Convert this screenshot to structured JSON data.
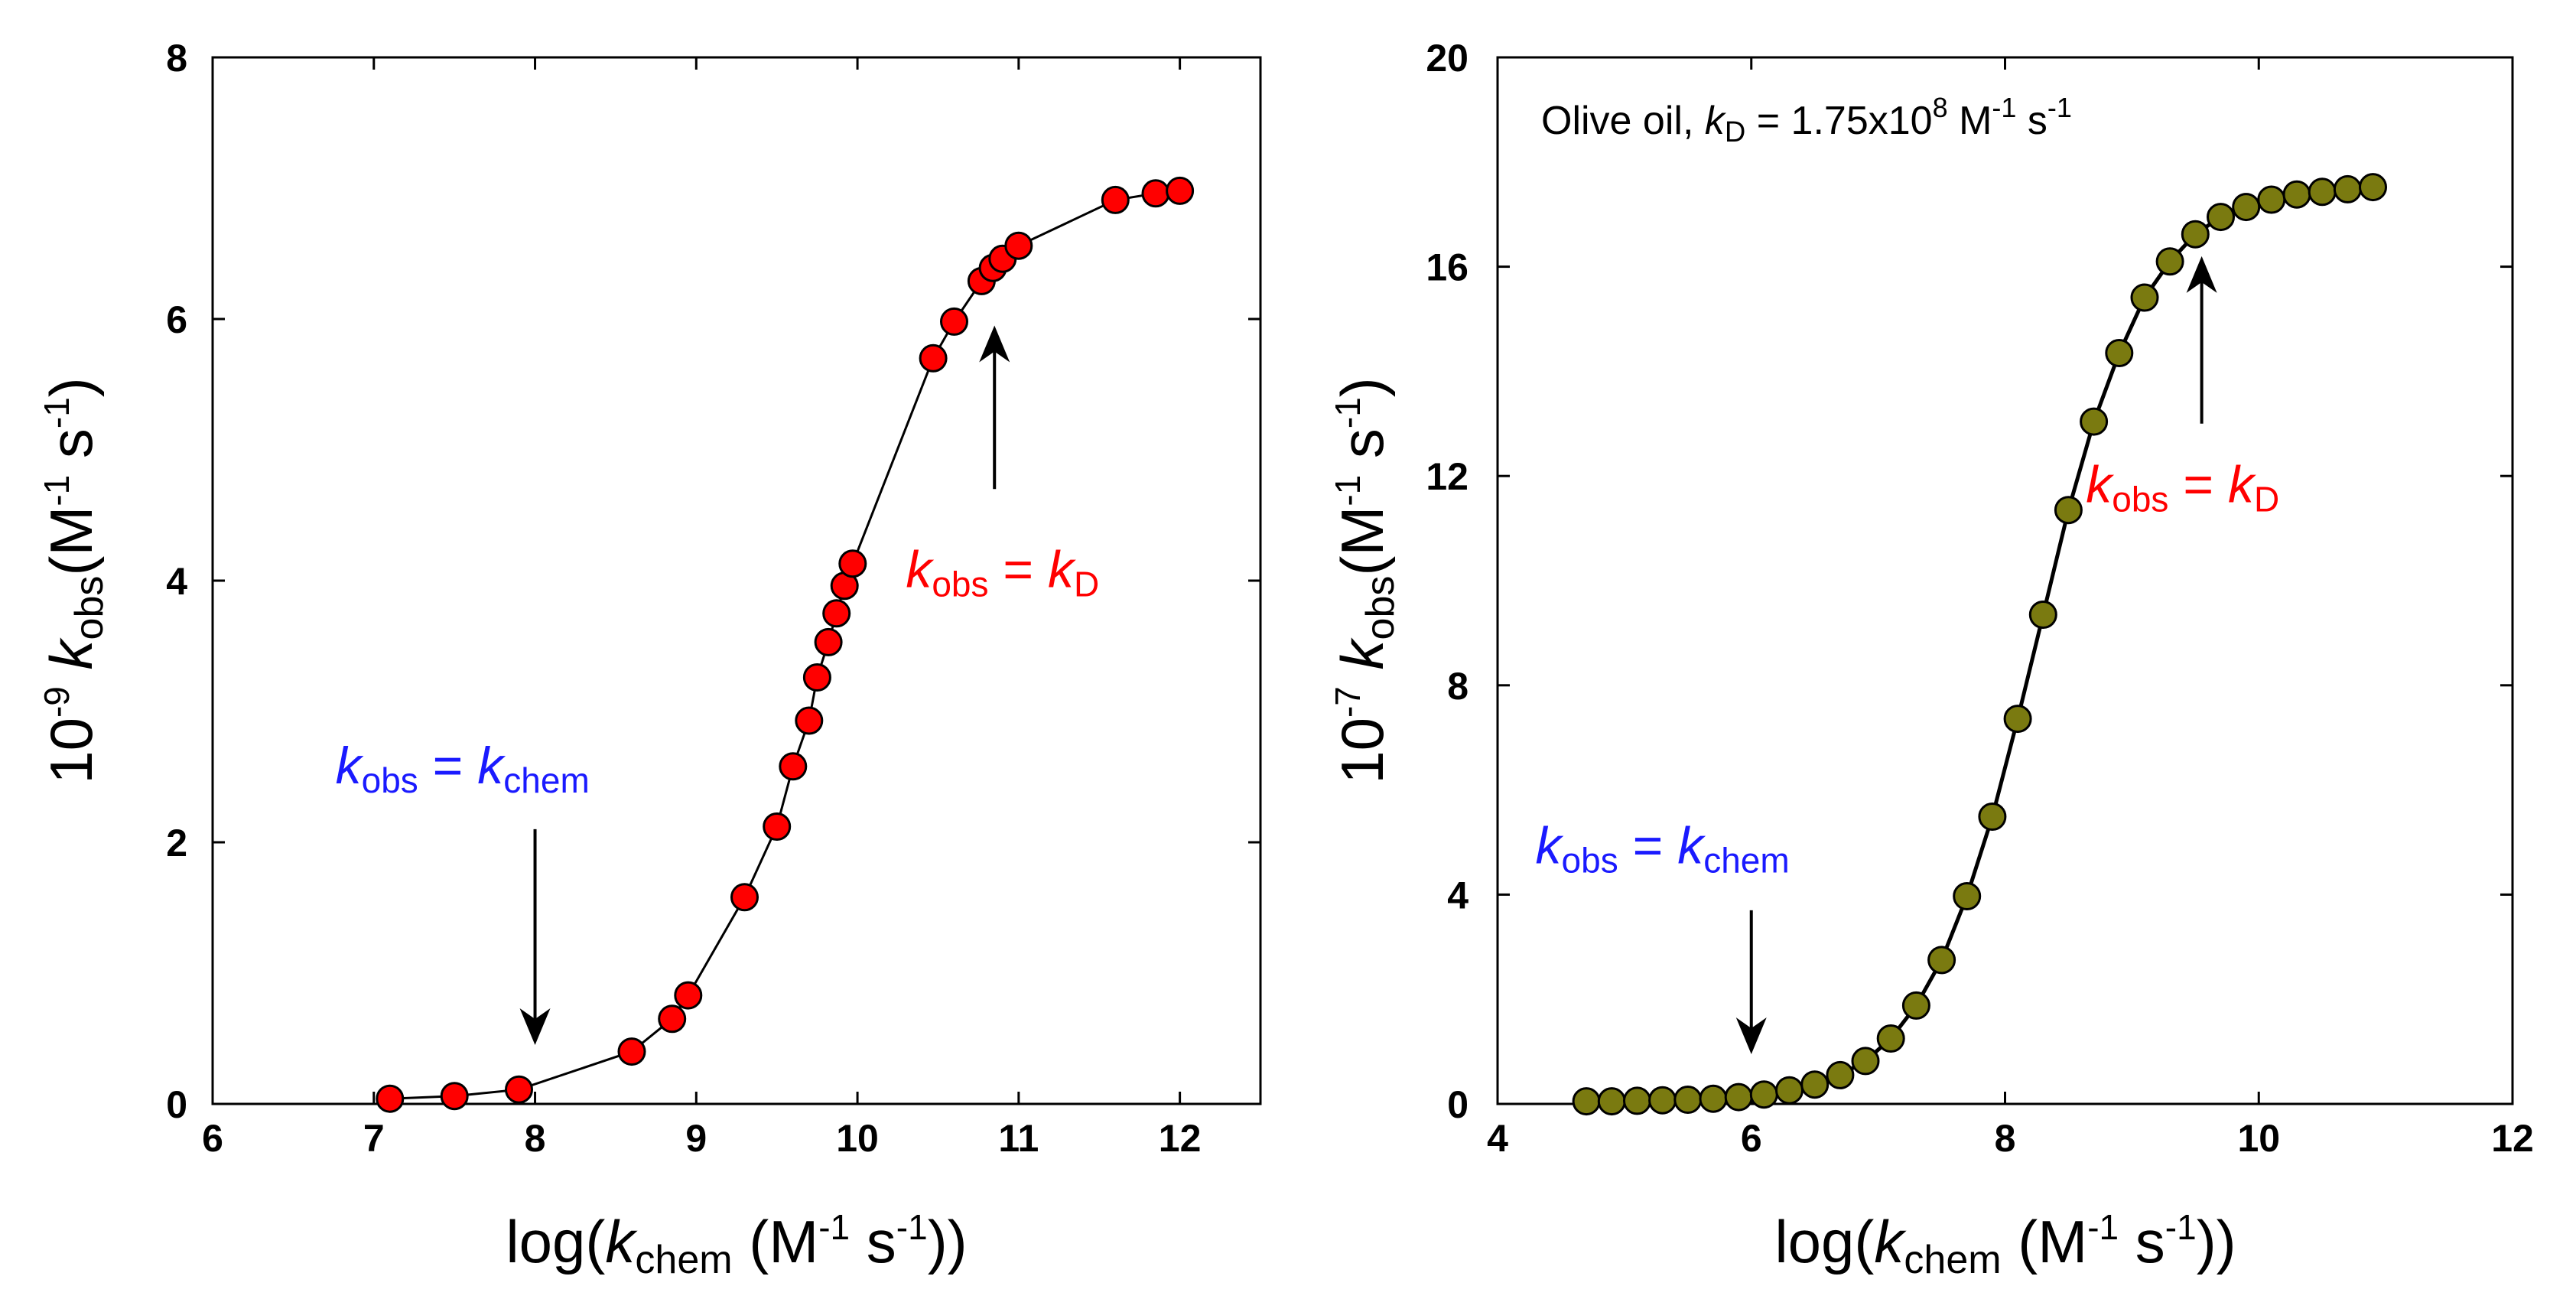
{
  "chart_data": [
    {
      "type": "scatter",
      "color": "#ff0000",
      "xlim": [
        6,
        12.5
      ],
      "ylim": [
        0,
        8
      ],
      "xticks": [
        "6",
        "7",
        "8",
        "9",
        "10",
        "11",
        "12"
      ],
      "yticks": [
        "0",
        "2",
        "4",
        "6",
        "8"
      ],
      "xlabel": {
        "prefix": "log(",
        "k": "k",
        "sub": "chem",
        "mid": " (M",
        "sup1": "-1",
        "mid2": " s",
        "sup2": "-1",
        "suffix": "))"
      },
      "ylabel": {
        "prefix": "10",
        "exp": "-9",
        "k": "k",
        "sub": "obs",
        "mid": "(M",
        "sup1": "-1",
        "mid2": " s",
        "sup2": "-1",
        "suffix": ")"
      },
      "annotations": [
        {
          "id": "low",
          "k1": "k",
          "s1": "obs",
          "eq": " = ",
          "k2": "k",
          "s2": "chem",
          "color": "#1a1aff",
          "arrow_x": 8.0,
          "arrow_from_y": 2.1,
          "arrow_to_y": 0.45,
          "text_x": 7.55,
          "text_y": 2.45
        },
        {
          "id": "high",
          "k1": "k",
          "s1": "obs",
          "eq": " = ",
          "k2": "k",
          "s2": "D",
          "color": "#ff0000",
          "arrow_x": 10.85,
          "arrow_from_y": 4.7,
          "arrow_to_y": 5.95,
          "text_x": 10.9,
          "text_y": 3.95
        }
      ],
      "series": [
        {
          "name": "data",
          "x": [
            7.1,
            7.5,
            7.9,
            8.6,
            8.85,
            8.95,
            9.3,
            9.5,
            9.6,
            9.7,
            9.75,
            9.82,
            9.87,
            9.92,
            9.97,
            10.47,
            10.6,
            10.77,
            10.84,
            10.9,
            11.0,
            11.6,
            11.85,
            12.0
          ],
          "y": [
            0.04,
            0.06,
            0.11,
            0.4,
            0.65,
            0.83,
            1.58,
            2.12,
            2.58,
            2.93,
            3.26,
            3.53,
            3.75,
            3.96,
            4.13,
            5.7,
            5.98,
            6.29,
            6.39,
            6.46,
            6.56,
            6.91,
            6.96,
            6.98
          ]
        }
      ]
    },
    {
      "type": "scatter",
      "color": "#7a7a10",
      "xlim": [
        4,
        12
      ],
      "ylim": [
        0,
        20
      ],
      "xticks": [
        "4",
        "6",
        "8",
        "10",
        "12"
      ],
      "yticks": [
        "0",
        "4",
        "8",
        "12",
        "16",
        "20"
      ],
      "xlabel": {
        "prefix": "log(",
        "k": "k",
        "sub": "chem",
        "mid": " (M",
        "sup1": "-1",
        "mid2": " s",
        "sup2": "-1",
        "suffix": "))"
      },
      "ylabel": {
        "prefix": "10",
        "exp": "-7",
        "k": "k",
        "sub": "obs",
        "mid": "(M",
        "sup1": "-1",
        "mid2": " s",
        "sup2": "-1",
        "suffix": ")"
      },
      "legend_note": {
        "text": "Olive oil, ",
        "k": "k",
        "sub": "D",
        "eq": " = 1.75x10",
        "exp": "8",
        "mid": " M",
        "sup1": "-1",
        "mid2": " s",
        "sup2": "-1"
      },
      "annotations": [
        {
          "id": "low",
          "k1": "k",
          "s1": "obs",
          "eq": " = ",
          "k2": "k",
          "s2": "chem",
          "color": "#1a1aff",
          "arrow_x": 6.0,
          "arrow_from_y": 3.7,
          "arrow_to_y": 0.95,
          "text_x": 5.3,
          "text_y": 4.6
        },
        {
          "id": "high",
          "k1": "k",
          "s1": "obs",
          "eq": " = ",
          "k2": "k",
          "s2": "D",
          "color": "#ff0000",
          "arrow_x": 9.55,
          "arrow_from_y": 13.0,
          "arrow_to_y": 16.2,
          "text_x": 9.4,
          "text_y": 11.5
        }
      ],
      "series": [
        {
          "name": "data",
          "x": [
            4.7,
            4.9,
            5.1,
            5.3,
            5.5,
            5.7,
            5.9,
            6.1,
            6.3,
            6.5,
            6.7,
            6.9,
            7.1,
            7.3,
            7.5,
            7.7,
            7.9,
            8.1,
            8.3,
            8.5,
            8.7,
            8.9,
            9.1,
            9.3,
            9.5,
            9.7,
            9.9,
            10.1,
            10.3,
            10.5,
            10.7,
            10.9
          ],
          "y": [
            0.05,
            0.05,
            0.06,
            0.07,
            0.08,
            0.1,
            0.13,
            0.18,
            0.26,
            0.37,
            0.55,
            0.82,
            1.25,
            1.88,
            2.75,
            3.97,
            5.49,
            7.36,
            9.35,
            11.35,
            13.04,
            14.35,
            15.41,
            16.1,
            16.62,
            16.95,
            17.14,
            17.28,
            17.38,
            17.43,
            17.48,
            17.52
          ]
        }
      ]
    }
  ]
}
